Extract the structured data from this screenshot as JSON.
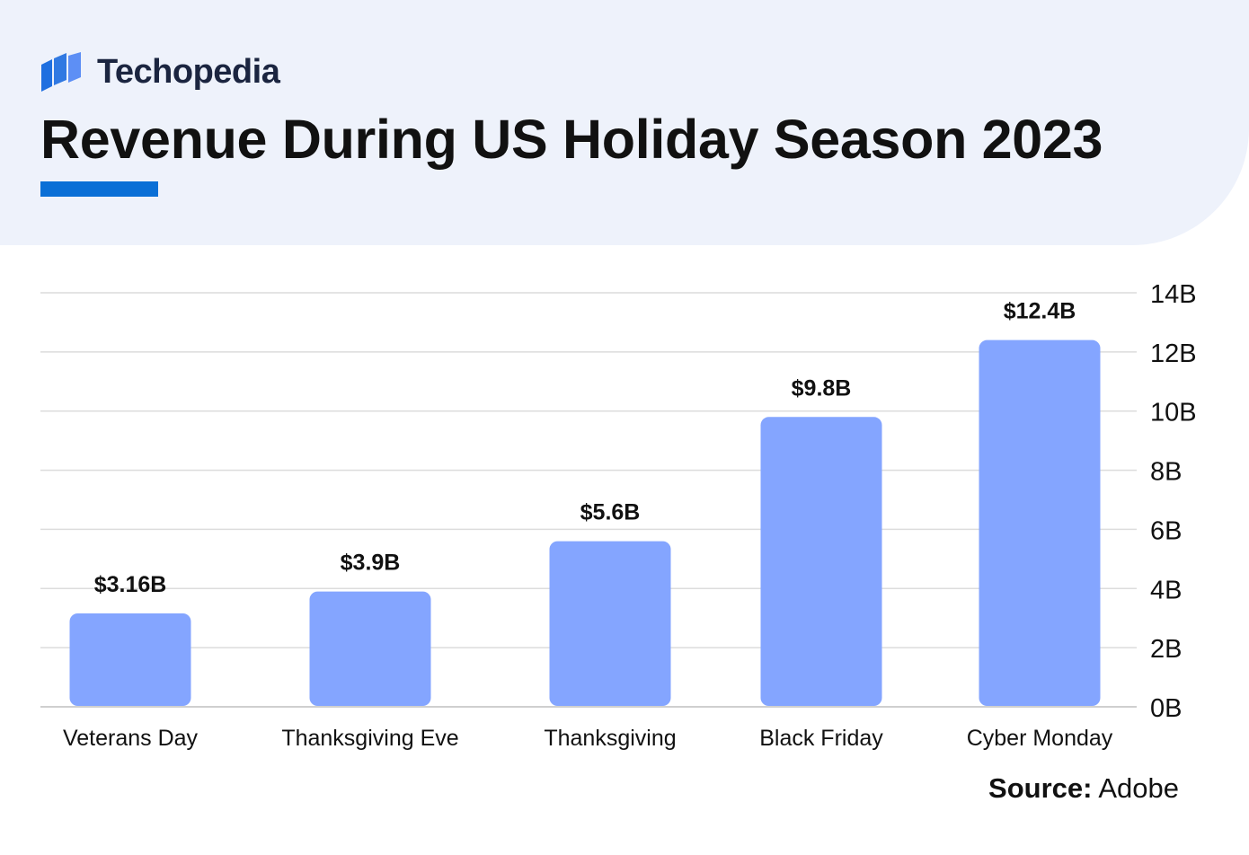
{
  "brand": {
    "name": "Techopedia",
    "logo_icon": "techopedia-logo-icon",
    "logo_color": "#1f6fe0"
  },
  "colors": {
    "bar": "#84a5ff",
    "accent": "#0a6fd6",
    "header_bg": "#eef2fb",
    "grid": "#dcdcdc"
  },
  "chart_data": {
    "type": "bar",
    "title": "Revenue During US Holiday Season 2023",
    "categories": [
      "Veterans Day",
      "Thanksgiving Eve",
      "Thanksgiving",
      "Black Friday",
      "Cyber Monday"
    ],
    "values": [
      3.16,
      3.9,
      5.6,
      9.8,
      12.4
    ],
    "data_labels": [
      "$3.16B",
      "$3.9B",
      "$5.6B",
      "$9.8B",
      "$12.4B"
    ],
    "ylim": [
      0,
      14
    ],
    "yticks": [
      0,
      2,
      4,
      6,
      8,
      10,
      12,
      14
    ],
    "ytick_labels": [
      "0B",
      "2B",
      "4B",
      "6B",
      "8B",
      "10B",
      "12B",
      "14B"
    ],
    "y_axis_position": "right",
    "grid": true,
    "xlabel": "",
    "ylabel": ""
  },
  "source": {
    "label": "Source:",
    "value": "Adobe"
  }
}
